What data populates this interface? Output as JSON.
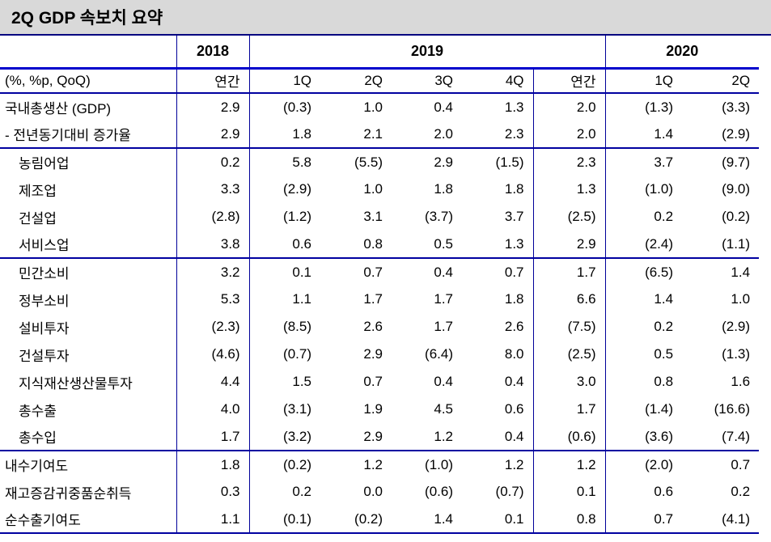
{
  "title": "2Q GDP 속보치 요약",
  "colors": {
    "title_band_bg": "#d9d9d9",
    "title_underline": "#000080",
    "thick_rule": "#0000cc",
    "thin_rule": "#000099",
    "text": "#000000"
  },
  "table": {
    "unit_label": "(%, %p, QoQ)",
    "year_groups": [
      {
        "label": "2018",
        "span": 1
      },
      {
        "label": "2019",
        "span": 5
      },
      {
        "label": "2020",
        "span": 2
      }
    ],
    "column_headers": [
      "연간",
      "1Q",
      "2Q",
      "3Q",
      "4Q",
      "연간",
      "1Q",
      "2Q"
    ],
    "rows": [
      {
        "label": "국내총생산 (GDP)",
        "indent": false,
        "section_end": false,
        "values": [
          "2.9",
          "(0.3)",
          "1.0",
          "0.4",
          "1.3",
          "2.0",
          "(1.3)",
          "(3.3)"
        ]
      },
      {
        "label": "- 전년동기대비 증가율",
        "indent": false,
        "section_end": true,
        "values": [
          "2.9",
          "1.8",
          "2.1",
          "2.0",
          "2.3",
          "2.0",
          "1.4",
          "(2.9)"
        ]
      },
      {
        "label": "농림어업",
        "indent": true,
        "section_end": false,
        "values": [
          "0.2",
          "5.8",
          "(5.5)",
          "2.9",
          "(1.5)",
          "2.3",
          "3.7",
          "(9.7)"
        ]
      },
      {
        "label": "제조업",
        "indent": true,
        "section_end": false,
        "values": [
          "3.3",
          "(2.9)",
          "1.0",
          "1.8",
          "1.8",
          "1.3",
          "(1.0)",
          "(9.0)"
        ]
      },
      {
        "label": "건설업",
        "indent": true,
        "section_end": false,
        "values": [
          "(2.8)",
          "(1.2)",
          "3.1",
          "(3.7)",
          "3.7",
          "(2.5)",
          "0.2",
          "(0.2)"
        ]
      },
      {
        "label": "서비스업",
        "indent": true,
        "section_end": true,
        "values": [
          "3.8",
          "0.6",
          "0.8",
          "0.5",
          "1.3",
          "2.9",
          "(2.4)",
          "(1.1)"
        ]
      },
      {
        "label": "민간소비",
        "indent": true,
        "section_end": false,
        "values": [
          "3.2",
          "0.1",
          "0.7",
          "0.4",
          "0.7",
          "1.7",
          "(6.5)",
          "1.4"
        ]
      },
      {
        "label": "정부소비",
        "indent": true,
        "section_end": false,
        "values": [
          "5.3",
          "1.1",
          "1.7",
          "1.7",
          "1.8",
          "6.6",
          "1.4",
          "1.0"
        ]
      },
      {
        "label": "설비투자",
        "indent": true,
        "section_end": false,
        "values": [
          "(2.3)",
          "(8.5)",
          "2.6",
          "1.7",
          "2.6",
          "(7.5)",
          "0.2",
          "(2.9)"
        ]
      },
      {
        "label": "건설투자",
        "indent": true,
        "section_end": false,
        "values": [
          "(4.6)",
          "(0.7)",
          "2.9",
          "(6.4)",
          "8.0",
          "(2.5)",
          "0.5",
          "(1.3)"
        ]
      },
      {
        "label": "지식재산생산물투자",
        "indent": true,
        "section_end": false,
        "values": [
          "4.4",
          "1.5",
          "0.7",
          "0.4",
          "0.4",
          "3.0",
          "0.8",
          "1.6"
        ]
      },
      {
        "label": "총수출",
        "indent": true,
        "section_end": false,
        "values": [
          "4.0",
          "(3.1)",
          "1.9",
          "4.5",
          "0.6",
          "1.7",
          "(1.4)",
          "(16.6)"
        ]
      },
      {
        "label": "총수입",
        "indent": true,
        "section_end": true,
        "values": [
          "1.7",
          "(3.2)",
          "2.9",
          "1.2",
          "0.4",
          "(0.6)",
          "(3.6)",
          "(7.4)"
        ]
      },
      {
        "label": "내수기여도",
        "indent": false,
        "section_end": false,
        "values": [
          "1.8",
          "(0.2)",
          "1.2",
          "(1.0)",
          "1.2",
          "1.2",
          "(2.0)",
          "0.7"
        ]
      },
      {
        "label": "재고증감귀중품순취득",
        "indent": false,
        "section_end": false,
        "values": [
          "0.3",
          "0.2",
          "0.0",
          "(0.6)",
          "(0.7)",
          "0.1",
          "0.6",
          "0.2"
        ]
      },
      {
        "label": "순수출기여도",
        "indent": false,
        "section_end": false,
        "values": [
          "1.1",
          "(0.1)",
          "(0.2)",
          "1.4",
          "0.1",
          "0.8",
          "0.7",
          "(4.1)"
        ]
      }
    ]
  }
}
